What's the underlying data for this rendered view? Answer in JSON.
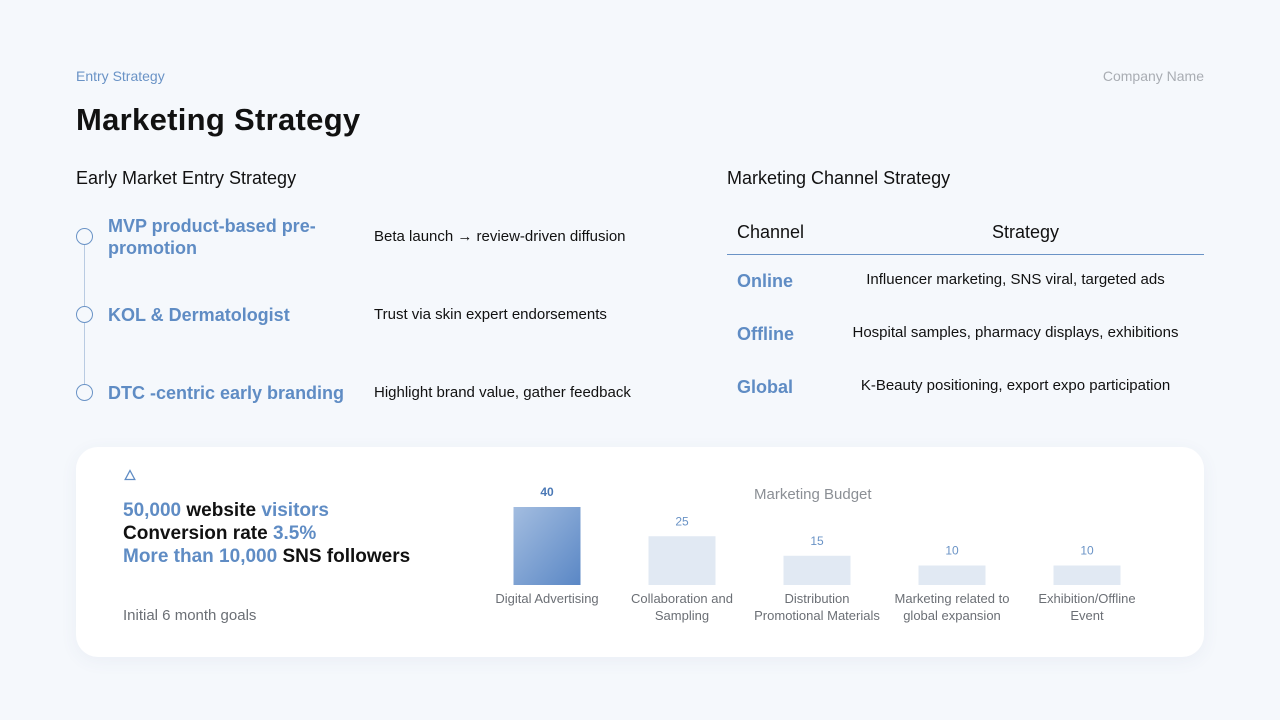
{
  "header": {
    "section_label": "Entry Strategy",
    "company": "Company Name",
    "title": "Marketing Strategy"
  },
  "early_entry": {
    "heading": "Early Market Entry Strategy",
    "items": [
      {
        "title": "MVP product-based pre-promotion",
        "desc": "Beta launch → review-driven diffusion"
      },
      {
        "title": "KOL & Dermatologist",
        "desc": "Trust via skin expert endorsements"
      },
      {
        "title": "DTC -centric early branding",
        "desc": "Highlight brand value, gather feedback"
      }
    ]
  },
  "channel_strategy": {
    "heading": "Marketing Channel Strategy",
    "columns": [
      "Channel",
      "Strategy"
    ],
    "rows": [
      {
        "channel": "Online",
        "strategy": "Influencer marketing, SNS viral, targeted ads"
      },
      {
        "channel": "Offline",
        "strategy": "Hospital samples, pharmacy displays, exhibitions"
      },
      {
        "channel": "Global",
        "strategy": "K-Beauty positioning, export expo participation"
      }
    ]
  },
  "goals": {
    "icon": "triangle-icon",
    "line1_value": "50,000",
    "line1_mid": " website ",
    "line1_end": "visitors",
    "line2_start": "Conversion rate ",
    "line2_value": "3.5%",
    "line3_value": "More than 10,000",
    "line3_end": " SNS followers",
    "caption": "Initial 6 month goals"
  },
  "chart_data": {
    "type": "bar",
    "title": "Marketing Budget",
    "categories": [
      [
        "Digital Advertising"
      ],
      [
        "Collaboration and",
        "Sampling"
      ],
      [
        "Distribution",
        "Promotional Materials"
      ],
      [
        "Marketing related to",
        "global expansion"
      ],
      [
        "Exhibition/Offline",
        "Event"
      ]
    ],
    "values": [
      40,
      25,
      15,
      10,
      10
    ],
    "ylim": [
      0,
      40
    ],
    "colors": {
      "highlight_top": "#a3bde0",
      "highlight_bottom": "#5a87c5",
      "muted": "#e1e9f3",
      "label_highlight": "#4a78b5",
      "label_muted": "#6a93c6",
      "category": "#6b6f75"
    }
  },
  "colors": {
    "accent": "#5f8cc4",
    "background": "#f5f8fc"
  }
}
